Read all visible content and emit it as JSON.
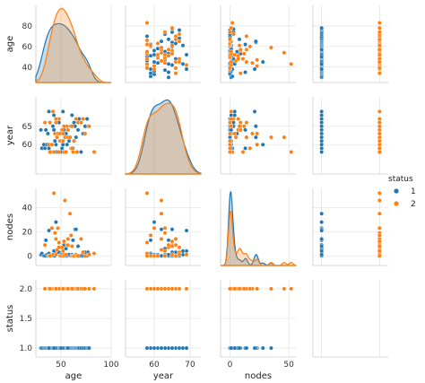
{
  "chart_data": {
    "type": "scatter",
    "kind": "pairplot",
    "variables": [
      "age",
      "year",
      "nodes",
      "status"
    ],
    "ranges": {
      "age": [
        25,
        100
      ],
      "year": [
        52,
        73
      ],
      "nodes": [
        -8,
        56
      ],
      "status": [
        0.85,
        2.15
      ]
    },
    "ticks": {
      "age": [
        50,
        100
      ],
      "year": [
        60,
        70
      ],
      "nodes": [
        0,
        50
      ],
      "status": [
        1,
        2
      ]
    },
    "y_ticks": {
      "age": [
        40,
        60,
        80
      ],
      "year": [
        60,
        65
      ],
      "nodes": [
        0,
        20,
        40
      ],
      "status": [
        1.0,
        1.5,
        2.0
      ]
    },
    "y_tick_labels": {
      "age": [
        "40",
        "60",
        "80"
      ],
      "year": [
        "60",
        "65"
      ],
      "nodes": [
        "0",
        "20",
        "40"
      ],
      "status": [
        "1.0",
        "1.5",
        "2.0"
      ]
    },
    "diagonal": "kde",
    "grid": true,
    "legend": {
      "title": "status",
      "placement": "right",
      "entries": [
        "1",
        "2"
      ]
    },
    "hue_colors": {
      "1": "#1f77b4",
      "2": "#ff7f0e"
    },
    "series": [
      {
        "name": "1",
        "points": [
          [
            30,
            64,
            1,
            1
          ],
          [
            31,
            59,
            2,
            1
          ],
          [
            33,
            60,
            0,
            1
          ],
          [
            34,
            59,
            0,
            1
          ],
          [
            35,
            64,
            13,
            1
          ],
          [
            36,
            60,
            1,
            1
          ],
          [
            37,
            63,
            0,
            1
          ],
          [
            38,
            59,
            2,
            1
          ],
          [
            39,
            66,
            0,
            1
          ],
          [
            40,
            58,
            0,
            1
          ],
          [
            41,
            60,
            23,
            1
          ],
          [
            42,
            65,
            0,
            1
          ],
          [
            43,
            64,
            0,
            1
          ],
          [
            44,
            61,
            0,
            1
          ],
          [
            45,
            67,
            1,
            1
          ],
          [
            46,
            58,
            2,
            1
          ],
          [
            47,
            63,
            23,
            1
          ],
          [
            48,
            66,
            3,
            1
          ],
          [
            49,
            61,
            0,
            1
          ],
          [
            50,
            63,
            1,
            1
          ],
          [
            51,
            59,
            1,
            1
          ],
          [
            52,
            60,
            0,
            1
          ],
          [
            53,
            64,
            9,
            1
          ],
          [
            54,
            62,
            0,
            1
          ],
          [
            55,
            63,
            6,
            1
          ],
          [
            56,
            60,
            0,
            1
          ],
          [
            57,
            64,
            1,
            1
          ],
          [
            58,
            61,
            1,
            1
          ],
          [
            59,
            62,
            35,
            1
          ],
          [
            60,
            65,
            0,
            1
          ],
          [
            61,
            68,
            1,
            1
          ],
          [
            62,
            59,
            13,
            1
          ],
          [
            63,
            66,
            0,
            1
          ],
          [
            64,
            65,
            22,
            1
          ],
          [
            65,
            62,
            22,
            1
          ],
          [
            66,
            58,
            0,
            1
          ],
          [
            67,
            64,
            8,
            1
          ],
          [
            68,
            67,
            0,
            1
          ],
          [
            70,
            58,
            0,
            1
          ],
          [
            72,
            63,
            0,
            1
          ],
          [
            74,
            65,
            3,
            1
          ],
          [
            76,
            67,
            0,
            1
          ],
          [
            77,
            65,
            3,
            1
          ],
          [
            78,
            65,
            1,
            1
          ],
          [
            45,
            60,
            28,
            1
          ],
          [
            52,
            69,
            4,
            1
          ],
          [
            57,
            62,
            14,
            1
          ],
          [
            43,
            68,
            4,
            1
          ],
          [
            38,
            69,
            21,
            1
          ],
          [
            50,
            58,
            1,
            1
          ]
        ]
      },
      {
        "name": "2",
        "points": [
          [
            34,
            66,
            9,
            2
          ],
          [
            38,
            60,
            0,
            2
          ],
          [
            39,
            66,
            0,
            2
          ],
          [
            41,
            60,
            23,
            2
          ],
          [
            42,
            69,
            1,
            2
          ],
          [
            43,
            58,
            52,
            2
          ],
          [
            44,
            63,
            19,
            2
          ],
          [
            45,
            66,
            14,
            2
          ],
          [
            46,
            62,
            5,
            2
          ],
          [
            47,
            63,
            23,
            2
          ],
          [
            48,
            58,
            11,
            2
          ],
          [
            49,
            63,
            0,
            2
          ],
          [
            50,
            61,
            0,
            2
          ],
          [
            51,
            64,
            7,
            2
          ],
          [
            52,
            61,
            0,
            2
          ],
          [
            53,
            58,
            1,
            2
          ],
          [
            54,
            62,
            46,
            2
          ],
          [
            55,
            58,
            1,
            2
          ],
          [
            56,
            65,
            9,
            2
          ],
          [
            57,
            62,
            14,
            2
          ],
          [
            59,
            62,
            35,
            2
          ],
          [
            60,
            59,
            17,
            2
          ],
          [
            61,
            59,
            0,
            2
          ],
          [
            62,
            58,
            0,
            2
          ],
          [
            63,
            61,
            0,
            2
          ],
          [
            65,
            67,
            1,
            2
          ],
          [
            66,
            58,
            0,
            2
          ],
          [
            67,
            66,
            0,
            2
          ],
          [
            70,
            66,
            14,
            2
          ],
          [
            72,
            67,
            3,
            2
          ],
          [
            74,
            63,
            0,
            2
          ],
          [
            78,
            65,
            1,
            2
          ],
          [
            83,
            58,
            2,
            2
          ],
          [
            53,
            65,
            12,
            2
          ],
          [
            48,
            67,
            7,
            2
          ],
          [
            57,
            64,
            9,
            2
          ],
          [
            45,
            67,
            1,
            2
          ],
          [
            61,
            65,
            8,
            2
          ],
          [
            39,
            58,
            0,
            2
          ],
          [
            52,
            63,
            4,
            2
          ]
        ]
      }
    ]
  }
}
